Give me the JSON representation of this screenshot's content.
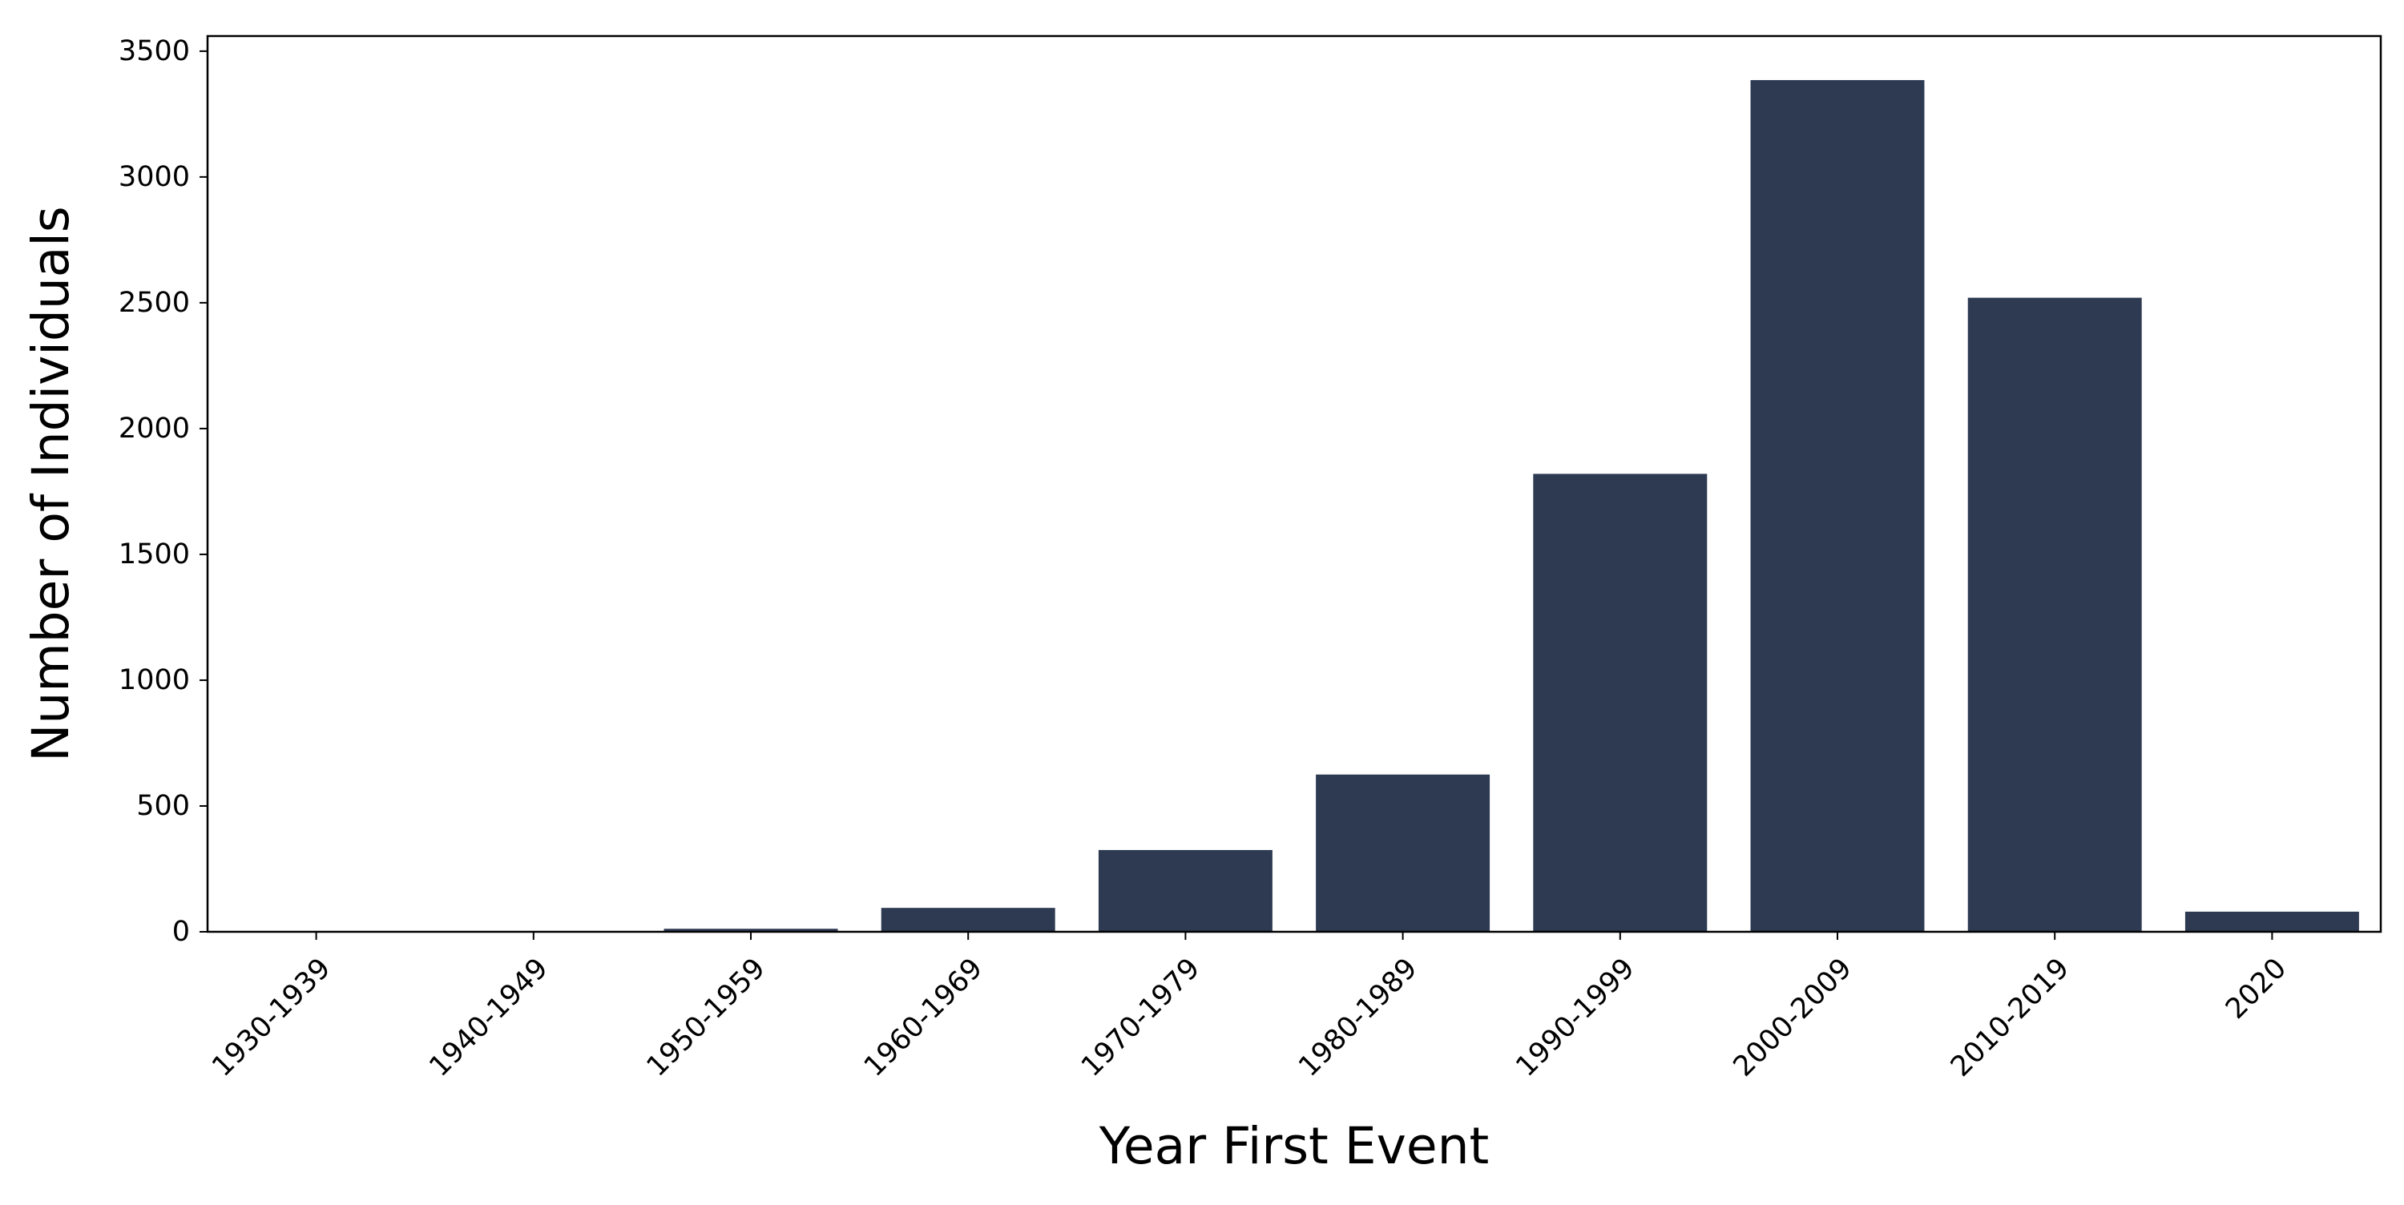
{
  "chart_data": {
    "type": "bar",
    "title": "",
    "xlabel": "Year First Event",
    "ylabel": "Number of Individuals",
    "categories": [
      "1930-1939",
      "1940-1949",
      "1950-1959",
      "1960-1969",
      "1970-1979",
      "1980-1989",
      "1990-1999",
      "2000-2009",
      "2010-2019",
      "2020"
    ],
    "values": [
      2,
      3,
      12,
      95,
      325,
      625,
      1820,
      3385,
      2520,
      80
    ],
    "ylim": [
      0,
      3560
    ],
    "yticks": [
      0,
      500,
      1000,
      1500,
      2000,
      2500,
      3000,
      3500
    ],
    "ytick_labels": [
      "0",
      "500",
      "1000",
      "1500",
      "2000",
      "2500",
      "3000",
      "3500"
    ],
    "grid": false,
    "legend": "none",
    "bar_color": "#2d3a52"
  }
}
